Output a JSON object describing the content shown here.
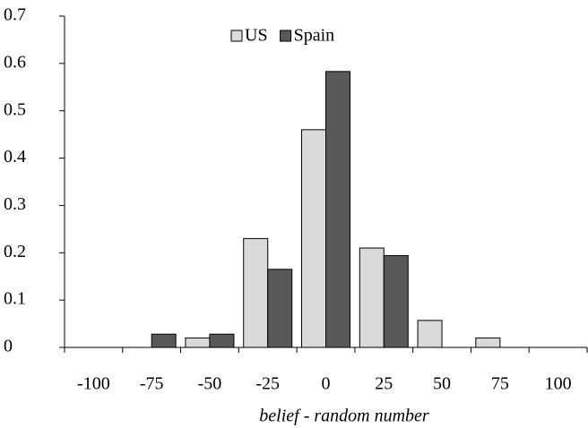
{
  "chart_data": {
    "type": "bar",
    "x_label": "belief - random number",
    "categories": [
      "-100",
      "-75",
      "-50",
      "-25",
      "0",
      "25",
      "50",
      "75",
      "100"
    ],
    "series": [
      {
        "name": "US",
        "color": "#d9d9d9",
        "values": [
          0,
          0,
          0.02,
          0.23,
          0.46,
          0.21,
          0.057,
          0.02,
          0
        ]
      },
      {
        "name": "Spain",
        "color": "#595959",
        "values": [
          0,
          0.028,
          0.028,
          0.165,
          0.583,
          0.194,
          0,
          0,
          0
        ]
      }
    ],
    "ylim": [
      0,
      0.7
    ],
    "yticks": [
      0,
      0.1,
      0.2,
      0.3,
      0.4,
      0.5,
      0.6,
      0.7
    ],
    "legend": "top"
  }
}
